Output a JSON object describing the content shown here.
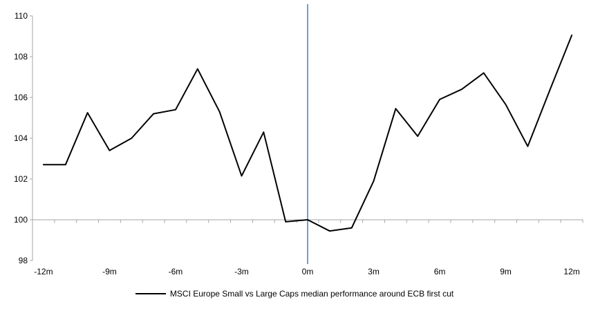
{
  "chart_data": {
    "type": "line",
    "title": "",
    "legend": "MSCI Europe Small vs Large Caps median performance around ECB first cut",
    "x": [
      -12,
      -11,
      -10,
      -9,
      -8,
      -7,
      -6,
      -5,
      -4,
      -3,
      -2,
      -1,
      0,
      1,
      2,
      3,
      4,
      5,
      6,
      7,
      8,
      9,
      10,
      11,
      12
    ],
    "values": [
      102.7,
      102.7,
      105.25,
      103.4,
      104.0,
      105.2,
      105.4,
      107.4,
      105.3,
      102.15,
      104.3,
      99.9,
      100.0,
      99.45,
      99.6,
      101.9,
      105.45,
      104.1,
      105.9,
      106.4,
      107.2,
      105.65,
      103.6,
      106.35,
      109.05
    ],
    "ylim": [
      98,
      110
    ],
    "y_ticks": [
      {
        "value": 98,
        "label": "98"
      },
      {
        "value": 100,
        "label": "100"
      },
      {
        "value": 102,
        "label": "102"
      },
      {
        "value": 104,
        "label": "104"
      },
      {
        "value": 106,
        "label": "106"
      },
      {
        "value": 108,
        "label": "108"
      },
      {
        "value": 110,
        "label": "110"
      }
    ],
    "x_ticks": [
      {
        "value": -12,
        "label": "-12m"
      },
      {
        "value": -9,
        "label": "-9m"
      },
      {
        "value": -6,
        "label": "-6m"
      },
      {
        "value": -3,
        "label": "-3m"
      },
      {
        "value": 0,
        "label": "0m"
      },
      {
        "value": 3,
        "label": "3m"
      },
      {
        "value": 6,
        "label": "6m"
      },
      {
        "value": 9,
        "label": "9m"
      },
      {
        "value": 12,
        "label": "12m"
      }
    ],
    "baseline_value": 100,
    "event_line_x": 0,
    "grid": "off",
    "legend_position": "bottom-center",
    "colors": {
      "series": "#000000",
      "event_line": "#6f9fce",
      "axis": "#a6a6a6",
      "baseline": "#a6a6a6",
      "text": "#000000"
    }
  }
}
